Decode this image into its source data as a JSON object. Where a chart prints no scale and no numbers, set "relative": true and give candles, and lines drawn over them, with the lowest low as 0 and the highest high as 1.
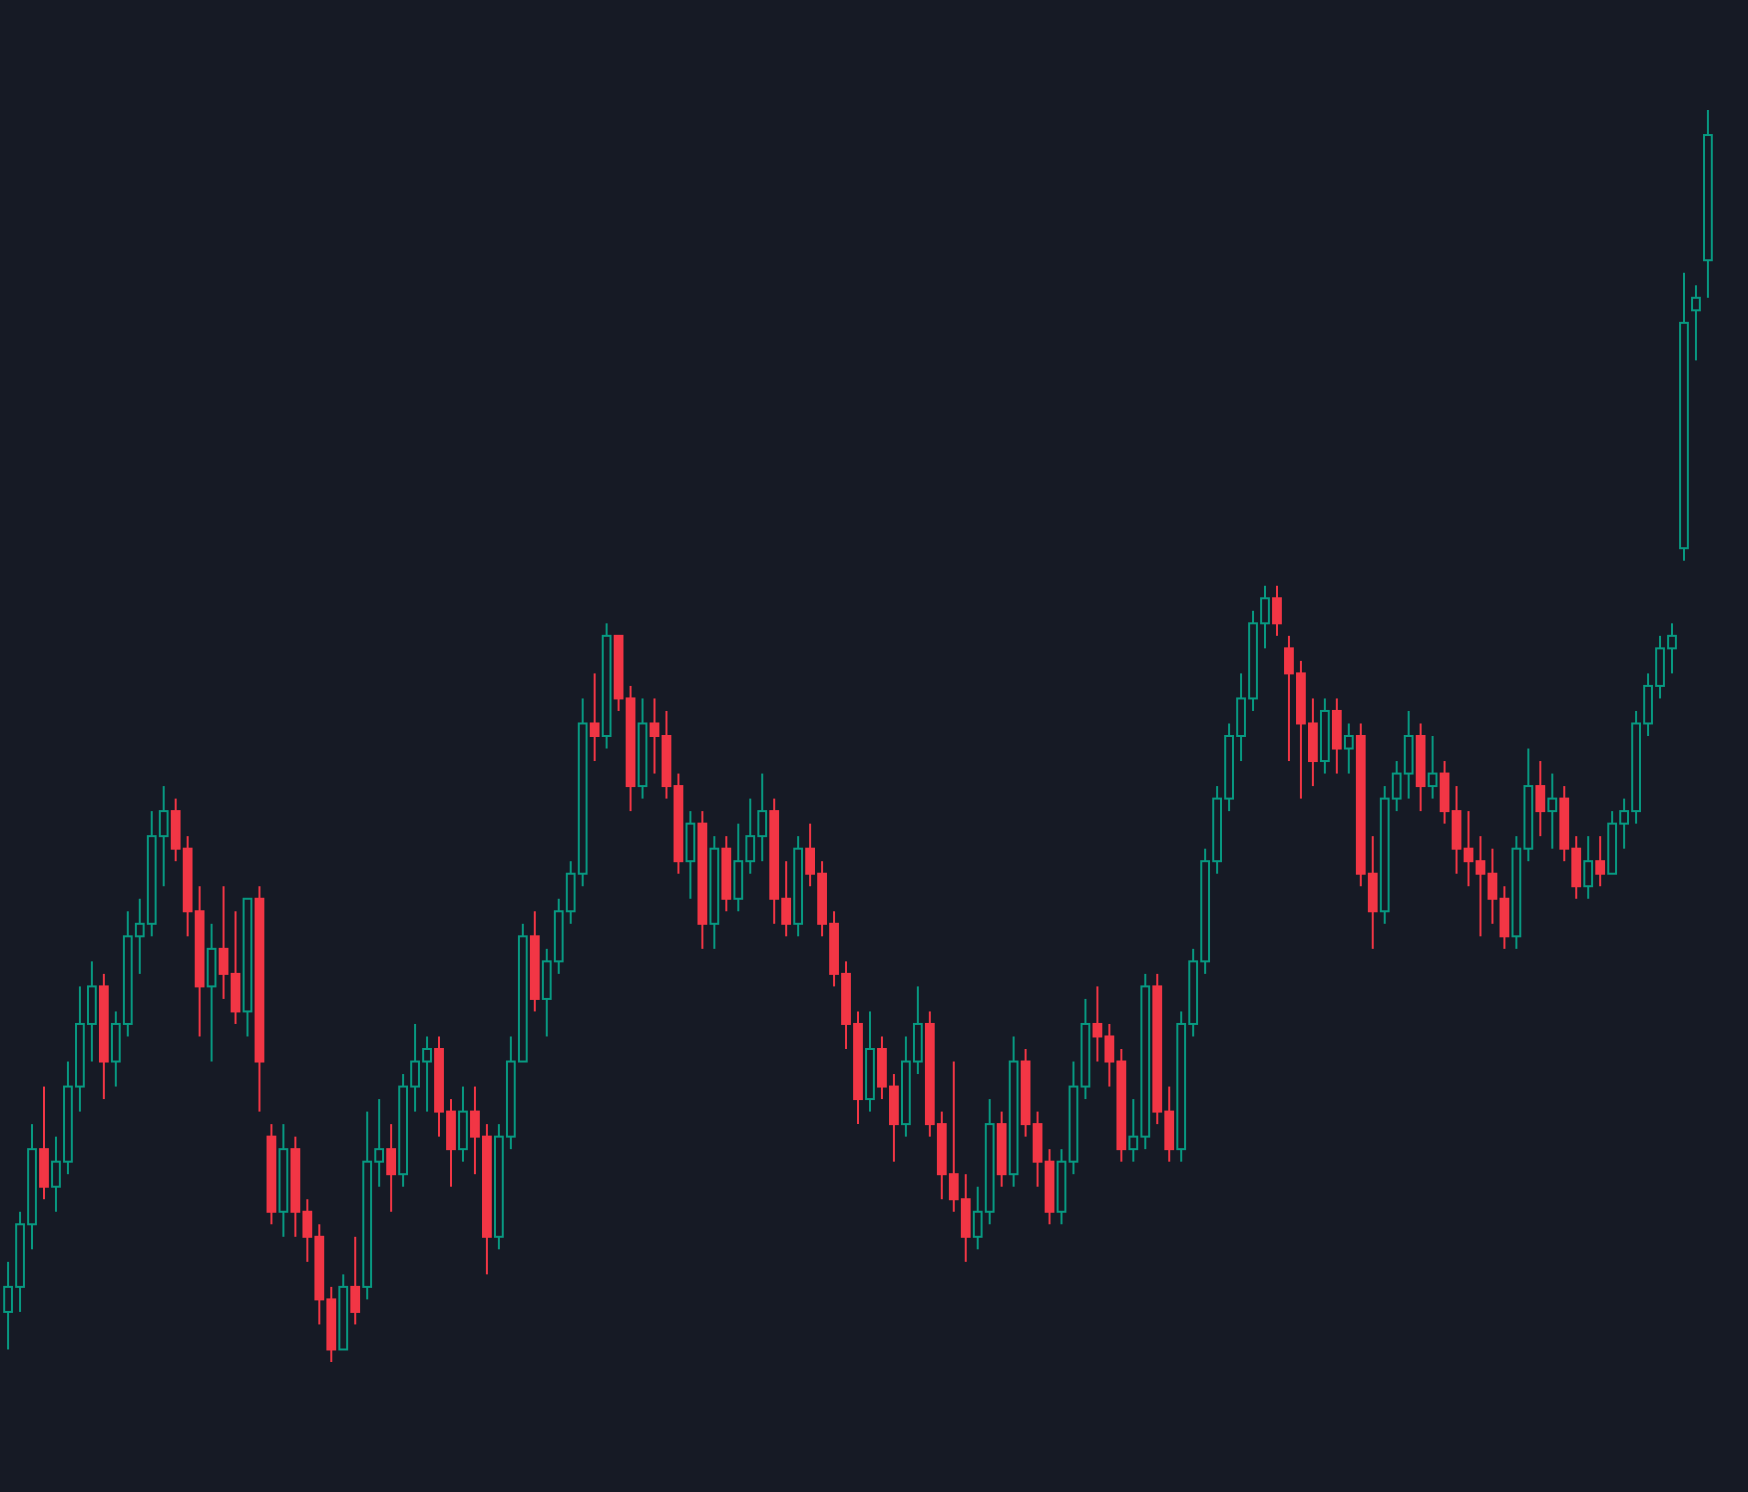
{
  "chart_data": {
    "type": "candlestick",
    "relative": true,
    "categories": [
      null,
      null,
      null,
      null,
      null,
      null,
      null,
      null,
      null,
      null,
      null,
      null,
      null,
      null,
      null,
      null,
      null,
      null,
      null,
      null,
      null,
      null,
      null,
      null,
      null,
      null,
      null,
      null,
      null,
      null,
      null,
      null,
      null,
      null,
      null,
      null,
      null,
      null,
      null,
      null,
      null,
      null,
      null,
      null,
      null,
      null,
      null,
      null,
      null,
      null,
      null,
      null,
      null,
      null,
      null,
      null,
      null,
      null,
      null,
      null,
      null,
      null,
      null,
      null,
      null,
      null,
      null,
      null,
      null,
      null,
      null,
      null,
      null,
      null,
      null,
      null,
      null,
      null,
      null,
      null,
      null,
      null,
      null,
      null,
      null,
      null,
      null,
      null,
      null,
      null,
      null,
      null,
      null,
      null,
      null,
      null,
      null,
      null,
      null,
      null,
      null,
      null,
      null,
      null,
      null,
      null,
      null,
      null,
      null,
      null,
      null,
      null,
      null,
      null,
      null,
      null,
      null,
      null,
      null,
      null,
      null,
      null,
      null,
      null,
      null,
      null,
      null,
      null,
      null,
      null,
      null,
      null,
      null,
      null,
      null,
      null,
      null,
      null,
      null,
      null,
      null,
      null,
      null
    ],
    "ohlc": [
      [
        0.04,
        0.08,
        0.01,
        0.06
      ],
      [
        0.06,
        0.12,
        0.04,
        0.11
      ],
      [
        0.11,
        0.19,
        0.09,
        0.17
      ],
      [
        0.17,
        0.22,
        0.13,
        0.14
      ],
      [
        0.14,
        0.18,
        0.12,
        0.16
      ],
      [
        0.16,
        0.24,
        0.15,
        0.22
      ],
      [
        0.22,
        0.3,
        0.2,
        0.27
      ],
      [
        0.27,
        0.32,
        0.24,
        0.3
      ],
      [
        0.3,
        0.31,
        0.21,
        0.24
      ],
      [
        0.24,
        0.28,
        0.22,
        0.27
      ],
      [
        0.27,
        0.36,
        0.26,
        0.34
      ],
      [
        0.34,
        0.37,
        0.31,
        0.35
      ],
      [
        0.35,
        0.44,
        0.34,
        0.42
      ],
      [
        0.42,
        0.46,
        0.38,
        0.44
      ],
      [
        0.44,
        0.45,
        0.4,
        0.41
      ],
      [
        0.41,
        0.42,
        0.34,
        0.36
      ],
      [
        0.36,
        0.38,
        0.26,
        0.3
      ],
      [
        0.3,
        0.35,
        0.24,
        0.33
      ],
      [
        0.33,
        0.38,
        0.29,
        0.31
      ],
      [
        0.31,
        0.36,
        0.27,
        0.28
      ],
      [
        0.28,
        0.37,
        0.26,
        0.37
      ],
      [
        0.37,
        0.38,
        0.2,
        0.24
      ],
      [
        0.18,
        0.19,
        0.11,
        0.12
      ],
      [
        0.12,
        0.19,
        0.1,
        0.17
      ],
      [
        0.17,
        0.18,
        0.1,
        0.12
      ],
      [
        0.12,
        0.13,
        0.08,
        0.1
      ],
      [
        0.1,
        0.11,
        0.03,
        0.05
      ],
      [
        0.05,
        0.06,
        0.0,
        0.01
      ],
      [
        0.01,
        0.07,
        0.01,
        0.06
      ],
      [
        0.06,
        0.1,
        0.03,
        0.04
      ],
      [
        0.06,
        0.2,
        0.05,
        0.16
      ],
      [
        0.16,
        0.21,
        0.14,
        0.17
      ],
      [
        0.17,
        0.19,
        0.12,
        0.15
      ],
      [
        0.15,
        0.23,
        0.14,
        0.22
      ],
      [
        0.22,
        0.27,
        0.2,
        0.24
      ],
      [
        0.24,
        0.26,
        0.2,
        0.25
      ],
      [
        0.25,
        0.26,
        0.18,
        0.2
      ],
      [
        0.2,
        0.21,
        0.14,
        0.17
      ],
      [
        0.17,
        0.22,
        0.16,
        0.2
      ],
      [
        0.2,
        0.22,
        0.15,
        0.18
      ],
      [
        0.18,
        0.19,
        0.07,
        0.1
      ],
      [
        0.1,
        0.19,
        0.09,
        0.18
      ],
      [
        0.18,
        0.26,
        0.17,
        0.24
      ],
      [
        0.24,
        0.35,
        0.24,
        0.34
      ],
      [
        0.34,
        0.36,
        0.28,
        0.29
      ],
      [
        0.29,
        0.33,
        0.26,
        0.32
      ],
      [
        0.32,
        0.37,
        0.31,
        0.36
      ],
      [
        0.36,
        0.4,
        0.35,
        0.39
      ],
      [
        0.39,
        0.53,
        0.38,
        0.51
      ],
      [
        0.51,
        0.55,
        0.48,
        0.5
      ],
      [
        0.5,
        0.59,
        0.49,
        0.58
      ],
      [
        0.58,
        0.58,
        0.52,
        0.53
      ],
      [
        0.53,
        0.54,
        0.44,
        0.46
      ],
      [
        0.46,
        0.53,
        0.45,
        0.51
      ],
      [
        0.51,
        0.53,
        0.47,
        0.5
      ],
      [
        0.5,
        0.52,
        0.45,
        0.46
      ],
      [
        0.46,
        0.47,
        0.39,
        0.4
      ],
      [
        0.4,
        0.44,
        0.37,
        0.43
      ],
      [
        0.43,
        0.44,
        0.33,
        0.35
      ],
      [
        0.35,
        0.42,
        0.33,
        0.41
      ],
      [
        0.41,
        0.42,
        0.36,
        0.37
      ],
      [
        0.37,
        0.43,
        0.36,
        0.4
      ],
      [
        0.4,
        0.45,
        0.39,
        0.42
      ],
      [
        0.42,
        0.47,
        0.4,
        0.44
      ],
      [
        0.44,
        0.45,
        0.35,
        0.37
      ],
      [
        0.37,
        0.4,
        0.34,
        0.35
      ],
      [
        0.35,
        0.42,
        0.34,
        0.41
      ],
      [
        0.41,
        0.43,
        0.38,
        0.39
      ],
      [
        0.39,
        0.4,
        0.34,
        0.35
      ],
      [
        0.35,
        0.36,
        0.3,
        0.31
      ],
      [
        0.31,
        0.32,
        0.25,
        0.27
      ],
      [
        0.27,
        0.28,
        0.19,
        0.21
      ],
      [
        0.21,
        0.28,
        0.2,
        0.25
      ],
      [
        0.25,
        0.26,
        0.21,
        0.22
      ],
      [
        0.22,
        0.23,
        0.16,
        0.19
      ],
      [
        0.19,
        0.26,
        0.18,
        0.24
      ],
      [
        0.24,
        0.3,
        0.23,
        0.27
      ],
      [
        0.27,
        0.28,
        0.18,
        0.19
      ],
      [
        0.19,
        0.2,
        0.13,
        0.15
      ],
      [
        0.15,
        0.24,
        0.12,
        0.13
      ],
      [
        0.13,
        0.15,
        0.08,
        0.1
      ],
      [
        0.1,
        0.14,
        0.09,
        0.12
      ],
      [
        0.12,
        0.21,
        0.11,
        0.19
      ],
      [
        0.19,
        0.2,
        0.14,
        0.15
      ],
      [
        0.15,
        0.26,
        0.14,
        0.24
      ],
      [
        0.24,
        0.25,
        0.18,
        0.19
      ],
      [
        0.19,
        0.2,
        0.14,
        0.16
      ],
      [
        0.16,
        0.17,
        0.11,
        0.12
      ],
      [
        0.12,
        0.17,
        0.11,
        0.16
      ],
      [
        0.16,
        0.24,
        0.15,
        0.22
      ],
      [
        0.22,
        0.29,
        0.21,
        0.27
      ],
      [
        0.27,
        0.3,
        0.24,
        0.26
      ],
      [
        0.26,
        0.27,
        0.22,
        0.24
      ],
      [
        0.24,
        0.25,
        0.16,
        0.17
      ],
      [
        0.17,
        0.21,
        0.16,
        0.18
      ],
      [
        0.18,
        0.31,
        0.17,
        0.3
      ],
      [
        0.3,
        0.31,
        0.19,
        0.2
      ],
      [
        0.2,
        0.22,
        0.16,
        0.17
      ],
      [
        0.17,
        0.28,
        0.16,
        0.27
      ],
      [
        0.27,
        0.33,
        0.26,
        0.32
      ],
      [
        0.32,
        0.41,
        0.31,
        0.4
      ],
      [
        0.4,
        0.46,
        0.39,
        0.45
      ],
      [
        0.45,
        0.51,
        0.44,
        0.5
      ],
      [
        0.5,
        0.55,
        0.48,
        0.53
      ],
      [
        0.53,
        0.6,
        0.52,
        0.59
      ],
      [
        0.59,
        0.62,
        0.57,
        0.61
      ],
      [
        0.61,
        0.62,
        0.58,
        0.59
      ],
      [
        0.57,
        0.58,
        0.48,
        0.55
      ],
      [
        0.55,
        0.56,
        0.45,
        0.51
      ],
      [
        0.51,
        0.53,
        0.46,
        0.48
      ],
      [
        0.48,
        0.53,
        0.47,
        0.52
      ],
      [
        0.52,
        0.53,
        0.47,
        0.49
      ],
      [
        0.49,
        0.51,
        0.47,
        0.5
      ],
      [
        0.5,
        0.51,
        0.38,
        0.39
      ],
      [
        0.39,
        0.42,
        0.33,
        0.36
      ],
      [
        0.36,
        0.46,
        0.35,
        0.45
      ],
      [
        0.45,
        0.48,
        0.44,
        0.47
      ],
      [
        0.47,
        0.52,
        0.45,
        0.5
      ],
      [
        0.5,
        0.51,
        0.44,
        0.46
      ],
      [
        0.46,
        0.5,
        0.45,
        0.47
      ],
      [
        0.47,
        0.48,
        0.43,
        0.44
      ],
      [
        0.44,
        0.46,
        0.39,
        0.41
      ],
      [
        0.41,
        0.44,
        0.38,
        0.4
      ],
      [
        0.4,
        0.42,
        0.34,
        0.39
      ],
      [
        0.39,
        0.41,
        0.35,
        0.37
      ],
      [
        0.37,
        0.38,
        0.33,
        0.34
      ],
      [
        0.34,
        0.42,
        0.33,
        0.41
      ],
      [
        0.41,
        0.49,
        0.4,
        0.46
      ],
      [
        0.46,
        0.48,
        0.42,
        0.44
      ],
      [
        0.44,
        0.47,
        0.41,
        0.45
      ],
      [
        0.45,
        0.46,
        0.4,
        0.41
      ],
      [
        0.41,
        0.42,
        0.37,
        0.38
      ],
      [
        0.38,
        0.42,
        0.37,
        0.4
      ],
      [
        0.4,
        0.42,
        0.38,
        0.39
      ],
      [
        0.39,
        0.44,
        0.39,
        0.43
      ],
      [
        0.43,
        0.45,
        0.41,
        0.44
      ],
      [
        0.44,
        0.52,
        0.43,
        0.51
      ],
      [
        0.51,
        0.55,
        0.5,
        0.54
      ],
      [
        0.54,
        0.58,
        0.53,
        0.57
      ],
      [
        0.57,
        0.59,
        0.55,
        0.58
      ],
      [
        0.65,
        0.87,
        0.64,
        0.83
      ],
      [
        0.84,
        0.86,
        0.8,
        0.85
      ],
      [
        0.88,
        1,
        0.85,
        0.98
      ]
    ]
  }
}
